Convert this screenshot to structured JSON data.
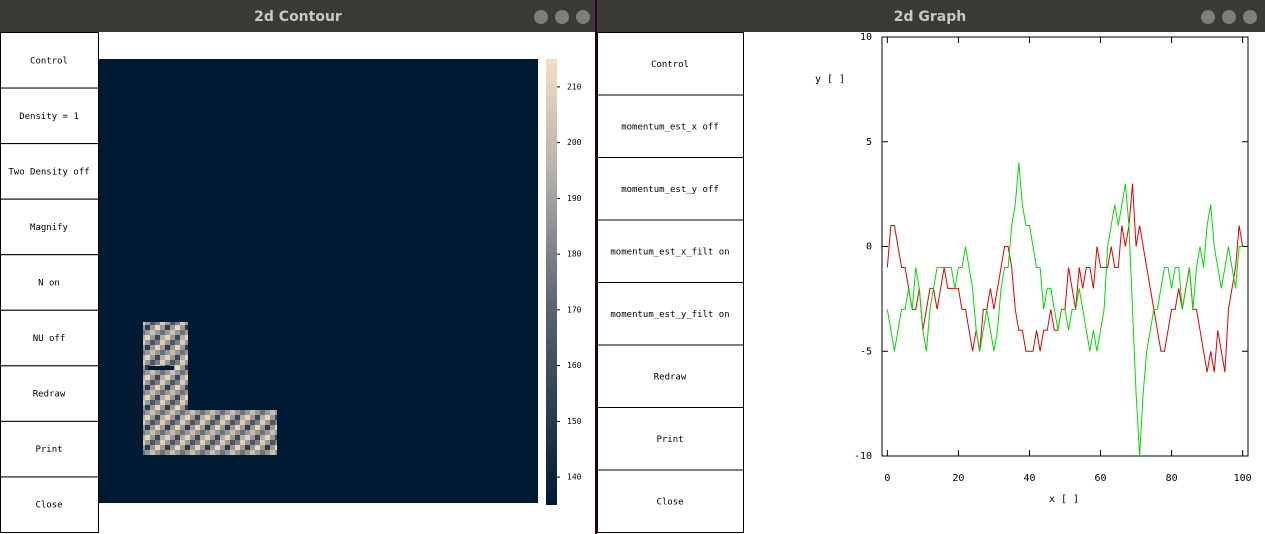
{
  "windows": [
    {
      "title": "2d Contour",
      "buttons": [
        "Control",
        "Density = 1",
        "Two Density  off",
        "Magnify",
        "N on",
        "NU off",
        "Redraw",
        "Print",
        "Close"
      ],
      "colorbar": {
        "clim": [
          135,
          215
        ],
        "ticks": [
          140,
          150,
          160,
          170,
          180,
          190,
          200,
          210
        ]
      }
    },
    {
      "title": "2d Graph",
      "buttons": [
        "Control",
        "momentum_est_x off",
        "momentum_est_y off",
        "momentum_est_x_filt on",
        "momentum_est_y_filt on",
        "Redraw",
        "Print",
        "Close"
      ],
      "chart_data": {
        "type": "line",
        "xlabel": "x [ ]",
        "ylabel": "y [ ]",
        "xlim": [
          -1.5,
          101.5
        ],
        "ylim": [
          -10,
          10
        ],
        "xticks": [
          0,
          20,
          40,
          60,
          80,
          100
        ],
        "yticks": [
          -10,
          -5,
          0,
          5,
          10
        ],
        "x": [
          0,
          1,
          2,
          3,
          4,
          5,
          6,
          7,
          8,
          9,
          10,
          11,
          12,
          13,
          14,
          15,
          16,
          17,
          18,
          19,
          20,
          21,
          22,
          23,
          24,
          25,
          26,
          27,
          28,
          29,
          30,
          31,
          32,
          33,
          34,
          35,
          36,
          37,
          38,
          39,
          40,
          41,
          42,
          43,
          44,
          45,
          46,
          47,
          48,
          49,
          50,
          51,
          52,
          53,
          54,
          55,
          56,
          57,
          58,
          59,
          60,
          61,
          62,
          63,
          64,
          65,
          66,
          67,
          68,
          69,
          70,
          71,
          72,
          73,
          74,
          75,
          76,
          77,
          78,
          79,
          80,
          81,
          82,
          83,
          84,
          85,
          86,
          87,
          88,
          89,
          90,
          91,
          92,
          93,
          94,
          95,
          96,
          97,
          98,
          99,
          100
        ],
        "series": [
          {
            "color": "#e00000",
            "values": [
              -1,
              1,
              1,
              0,
              -1,
              -1,
              -2,
              -3,
              -3,
              -2,
              -4,
              -3,
              -2,
              -2,
              -3,
              -2,
              -1,
              -2,
              -2,
              -2,
              -2,
              -3,
              -3,
              -4,
              -5,
              -4,
              -5,
              -3,
              -3,
              -2,
              -3,
              -2,
              -1,
              0,
              0,
              -1,
              -3,
              -4,
              -4,
              -5,
              -5,
              -5,
              -4,
              -5,
              -4,
              -4,
              -3,
              -4,
              -4,
              -3,
              -3,
              -1,
              -2,
              -3,
              -1,
              -2,
              -1,
              -1,
              -2,
              0,
              -1,
              -1,
              -1,
              0,
              -1,
              -1,
              1,
              0,
              1,
              3,
              0,
              1,
              0,
              -1,
              -2,
              -3,
              -4,
              -5,
              -5,
              -4,
              -3,
              -3,
              -2,
              -3,
              -2,
              -1,
              -3,
              -3,
              -4,
              -5,
              -6,
              -5,
              -6,
              -4,
              -5,
              -6,
              -3,
              -2,
              -1,
              1,
              0
            ]
          },
          {
            "color": "#00dd00",
            "values": [
              -3,
              -4,
              -5,
              -4,
              -3,
              -3,
              -2,
              -3,
              -1,
              -2,
              -4,
              -5,
              -3,
              -2,
              -1,
              -1,
              -1,
              -1,
              -1,
              -2,
              -1,
              -1,
              0,
              -1,
              -2,
              -4,
              -5,
              -4,
              -3,
              -4,
              -5,
              -4,
              -2,
              -1,
              -1,
              1,
              2,
              4,
              2,
              1,
              1,
              0,
              -1,
              -1,
              -3,
              -2,
              -2,
              -3,
              -4,
              -3,
              -3,
              -4,
              -3,
              -3,
              -2,
              -3,
              -4,
              -5,
              -4,
              -5,
              -4,
              -3,
              0,
              1,
              2,
              1,
              2,
              3,
              1,
              -3,
              -7,
              -10,
              -7,
              -5,
              -4,
              -3,
              -3,
              -2,
              -1,
              -1,
              -2,
              -1,
              -1,
              -3,
              -2,
              -1,
              -3,
              -1,
              0,
              -1,
              1,
              2,
              0,
              -1,
              -2,
              -1,
              0,
              -1,
              -2,
              0,
              0
            ]
          }
        ]
      }
    }
  ]
}
